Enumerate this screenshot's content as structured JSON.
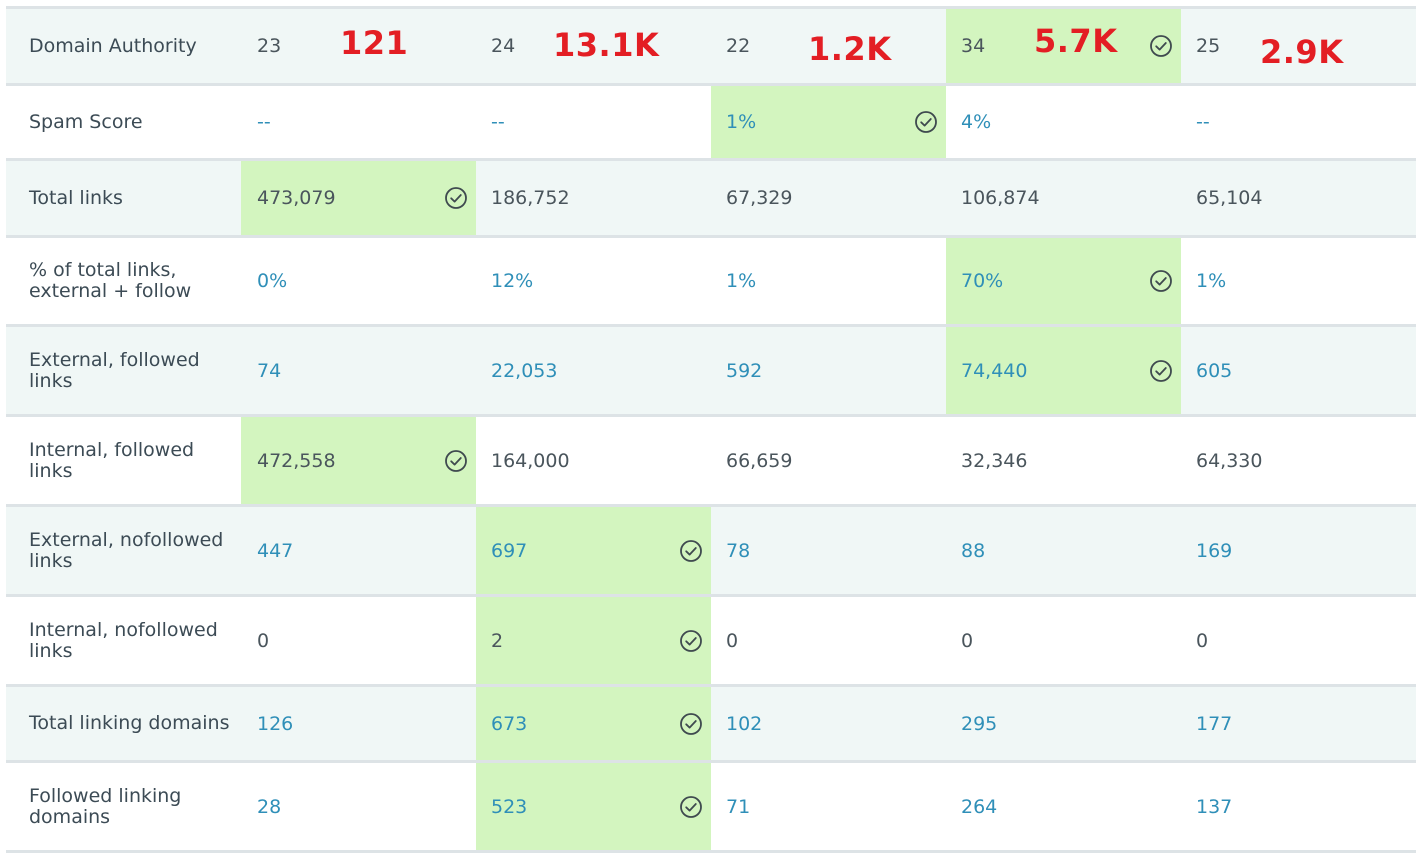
{
  "rows": [
    {
      "label": "Domain Authority",
      "cells": [
        "23",
        "24",
        "22",
        "34",
        "25"
      ]
    },
    {
      "label": "Spam Score",
      "cells": [
        "--",
        "--",
        "1%",
        "4%",
        "--"
      ]
    },
    {
      "label": "Total links",
      "cells": [
        "473,079",
        "186,752",
        "67,329",
        "106,874",
        "65,104"
      ]
    },
    {
      "label_line1": "% of total links,",
      "label_line2": "external + follow",
      "cells": [
        "0%",
        "12%",
        "1%",
        "70%",
        "1%"
      ]
    },
    {
      "label_line1": "External, followed",
      "label_line2": "links",
      "cells": [
        "74",
        "22,053",
        "592",
        "74,440",
        "605"
      ]
    },
    {
      "label_line1": "Internal, followed",
      "label_line2": "links",
      "cells": [
        "472,558",
        "164,000",
        "66,659",
        "32,346",
        "64,330"
      ]
    },
    {
      "label_line1": "External, nofollowed",
      "label_line2": "links",
      "cells": [
        "447",
        "697",
        "78",
        "88",
        "169"
      ]
    },
    {
      "label_line1": "Internal, nofollowed",
      "label_line2": "links",
      "cells": [
        "0",
        "2",
        "0",
        "0",
        "0"
      ]
    },
    {
      "label": "Total linking domains",
      "cells": [
        "126",
        "673",
        "102",
        "295",
        "177"
      ]
    },
    {
      "label_line1": "Followed linking",
      "label_line2": "domains",
      "cells": [
        "28",
        "523",
        "71",
        "264",
        "137"
      ]
    }
  ],
  "annotations": [
    "121",
    "13.1K",
    "1.2K",
    "5.7K",
    "2.9K"
  ],
  "colors": {
    "winner_bg": "#d3f5bf",
    "link_text": "#2f8fb8",
    "annotation": "#e31e24",
    "shaded_row": "#f0f7f6"
  },
  "icons": {
    "winner": "check-circle-icon"
  }
}
